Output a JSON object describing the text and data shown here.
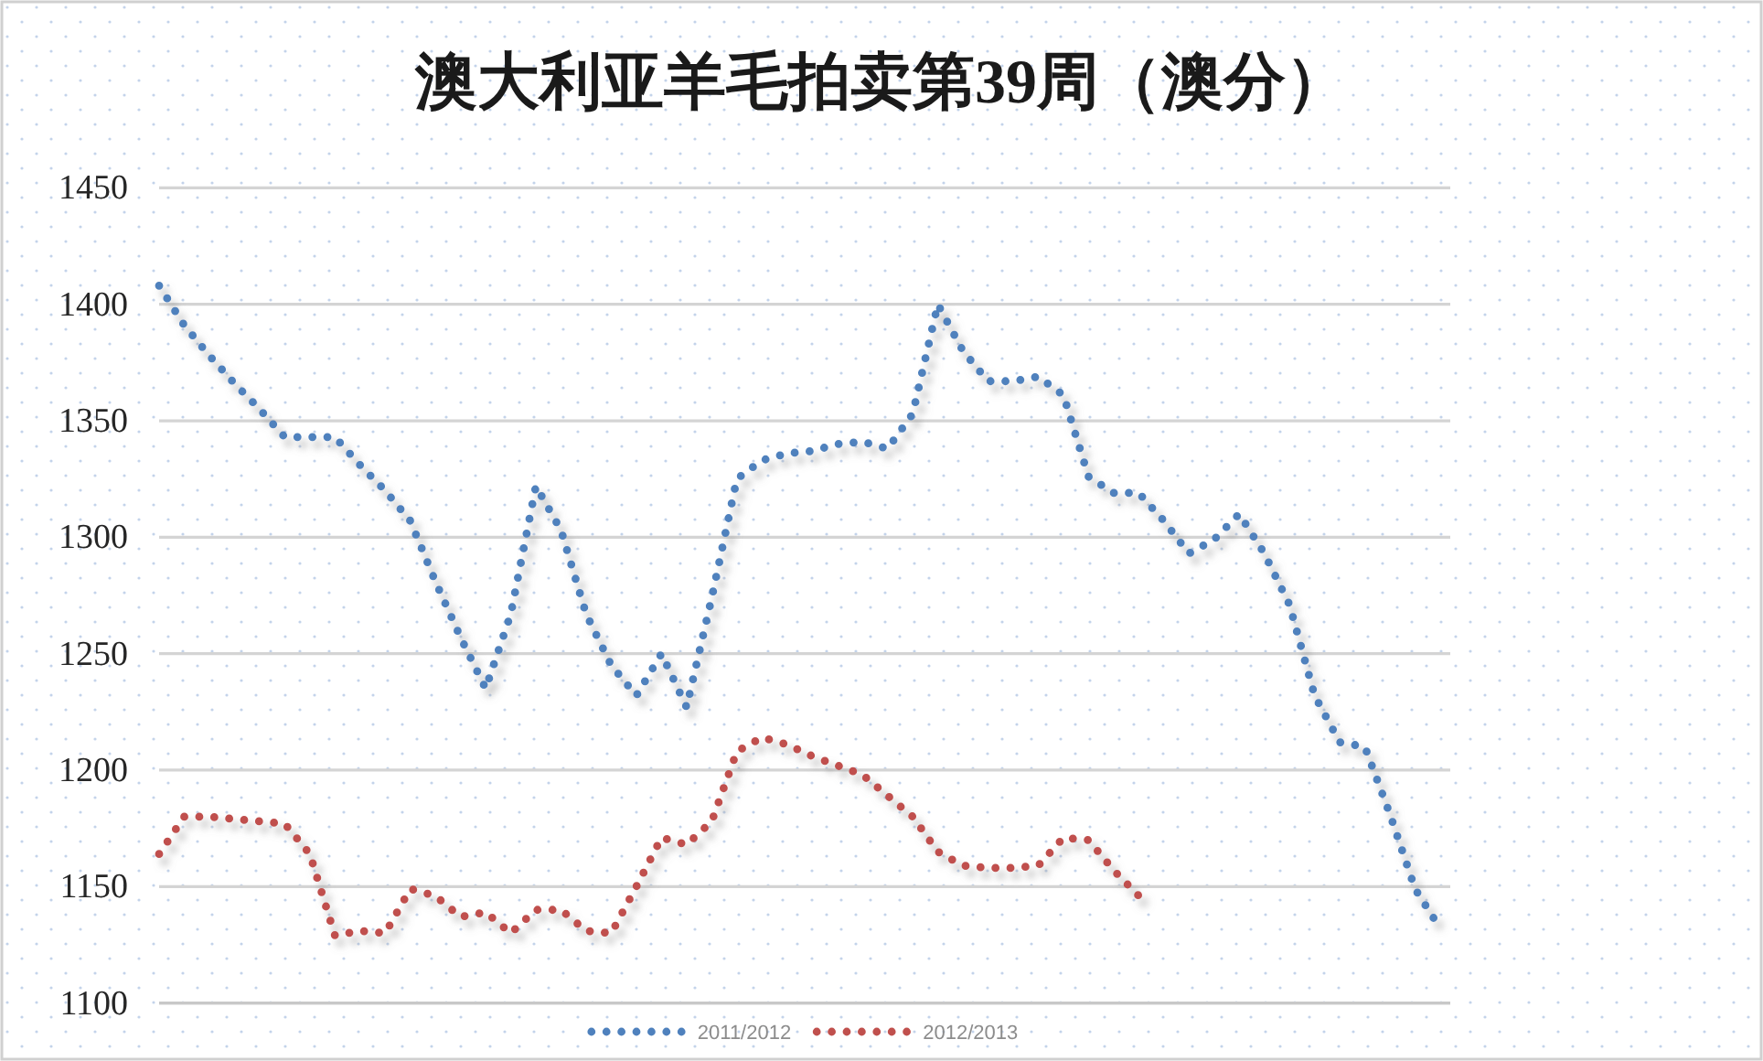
{
  "chart_data": {
    "type": "line",
    "title": "澳大利亚羊毛拍卖第39周（澳分）",
    "categories": [
      null,
      null,
      null,
      null,
      null,
      null,
      null,
      null,
      null,
      null,
      null,
      null,
      null,
      null,
      null,
      null,
      null,
      null,
      null,
      null,
      null,
      null,
      null,
      null,
      null,
      null,
      null,
      null,
      null,
      null,
      null,
      null,
      null,
      null,
      null,
      null,
      null,
      null,
      null,
      null,
      null,
      null,
      null,
      null,
      null,
      null,
      null,
      null,
      null,
      null,
      null,
      null
    ],
    "series": [
      {
        "name": "2011/2012",
        "color": "#4f81bd",
        "values": [
          1408,
          1391,
          1378,
          1366,
          1355,
          1343,
          1343,
          1343,
          1331,
          1320,
          1307,
          1281,
          1257,
          1235,
          1267,
          1322,
          1303,
          1267,
          1245,
          1232,
          1250,
          1227,
          1274,
          1325,
          1333,
          1336,
          1337,
          1340,
          1341,
          1338,
          1353,
          1400,
          1380,
          1367,
          1367,
          1369,
          1361,
          1326,
          1319,
          1319,
          1307,
          1293,
          1299,
          1310,
          1293,
          1271,
          1232,
          1212,
          1210,
          1181,
          1149,
          1132
        ]
      },
      {
        "name": "2012/2013",
        "color": "#c0504d",
        "values": [
          1164,
          1180,
          1180,
          1179,
          1178,
          1177,
          1164,
          1129,
          1131,
          1130,
          1149,
          1146,
          1137,
          1139,
          1130,
          1140,
          1140,
          1131,
          1130,
          1150,
          1171,
          1168,
          1178,
          1208,
          1214,
          1211,
          1206,
          1202,
          1198,
          1189,
          1180,
          1165,
          1159,
          1158,
          1158,
          1159,
          1171,
          1170,
          1157,
          1146,
          null,
          null,
          null,
          null,
          null,
          null,
          null,
          null,
          null,
          null,
          null,
          null
        ]
      }
    ],
    "ylim": [
      1100,
      1450
    ],
    "yticks": [
      1100,
      1150,
      1200,
      1250,
      1300,
      1350,
      1400,
      1450
    ],
    "grid": "y",
    "legend": "bottom",
    "line_style": "dotted"
  }
}
